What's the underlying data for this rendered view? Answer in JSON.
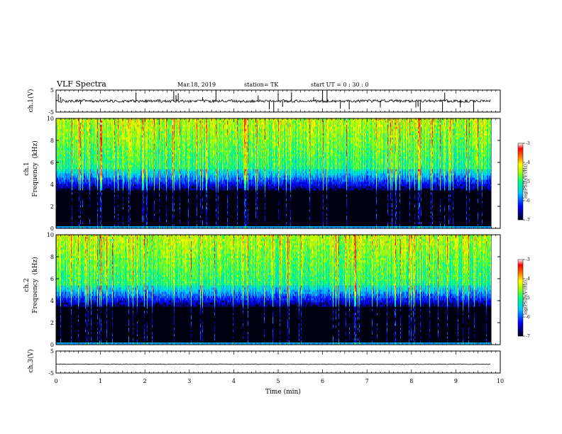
{
  "header": {
    "title": "VLF Spectra",
    "date": "Mar.18, 2019",
    "station": "station= TK",
    "start": "start  UT =   0 : 30 : 0"
  },
  "chart_data": [
    {
      "type": "line",
      "name": "ch1-waveform",
      "ylabel": "ch.1(V)",
      "xlim": [
        0,
        10
      ],
      "ylim": [
        -5,
        5
      ],
      "yticks": [
        "5",
        "-5"
      ],
      "baseline": 0,
      "spikes_minutes": [
        0.05,
        0.1,
        0.55,
        1.8,
        2.65,
        2.7,
        2.75,
        3.3,
        3.6,
        4.55,
        4.8,
        4.9,
        5.0,
        5.1,
        5.3,
        5.8,
        6.0,
        6.1,
        6.4,
        6.6,
        7.3,
        8.1,
        8.15,
        8.2,
        8.7,
        8.75,
        9.1,
        9.4
      ]
    },
    {
      "type": "heatmap",
      "name": "ch1-spectrogram",
      "ylabel": "ch.1\nFrequency  (kHz)",
      "xlim": [
        0,
        10
      ],
      "ylim": [
        0,
        10
      ],
      "yticks": [
        "0",
        "2",
        "4",
        "6",
        "8",
        "10"
      ],
      "data_end_minutes": 9.8,
      "colorbar": {
        "label": "log(PSD)(V²/Hz)",
        "range": [
          -7,
          -3
        ],
        "ticks": [
          "-3",
          "-4",
          "-5",
          "-6",
          "-7"
        ]
      }
    },
    {
      "type": "heatmap",
      "name": "ch2-spectrogram",
      "ylabel": "ch.2\nFrequency  (kHz)",
      "xlim": [
        0,
        10
      ],
      "ylim": [
        0,
        10
      ],
      "yticks": [
        "0",
        "2",
        "4",
        "6",
        "8",
        "10"
      ],
      "data_end_minutes": 9.8,
      "colorbar": {
        "label": "log(PSD)(V²/Hz)",
        "range": [
          -7,
          -3
        ],
        "ticks": [
          "-3",
          "-4",
          "-5",
          "-6",
          "-7"
        ]
      }
    },
    {
      "type": "line",
      "name": "ch3-waveform",
      "ylabel": "ch.3(V)",
      "xlim": [
        0,
        10
      ],
      "ylim": [
        -5,
        5
      ],
      "yticks": [
        "5",
        "-5"
      ],
      "baseline": -1
    }
  ],
  "xaxis": {
    "label": "Time  (min)",
    "ticks": [
      "0",
      "1",
      "2",
      "3",
      "4",
      "5",
      "6",
      "7",
      "8",
      "9",
      "10"
    ]
  }
}
